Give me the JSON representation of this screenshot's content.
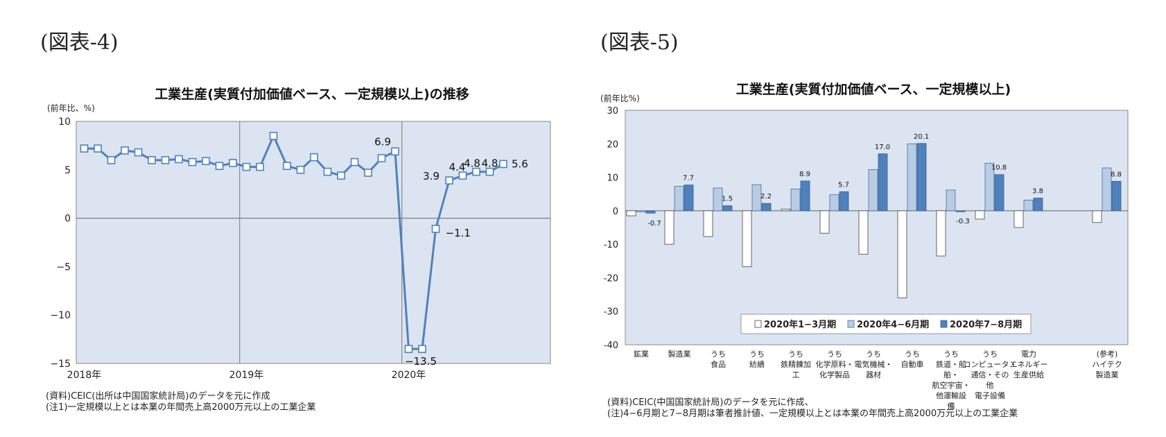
{
  "figures": {
    "fig4_label": "(図表-4)",
    "fig5_label": "(図表-5)"
  },
  "chart_data": [
    {
      "type": "line",
      "title": "工業生産(実質付加価値ベース、一定規模以上)の推移",
      "ylabel": "(前年比、%)",
      "ylim": [
        -15,
        10
      ],
      "yticks": [
        "10",
        "5",
        "0",
        "−5",
        "−10",
        "−15"
      ],
      "x_year_labels": [
        "2018年",
        "2019年",
        "2020年"
      ],
      "x": [
        "2018-01",
        "2018-02",
        "2018-03",
        "2018-04",
        "2018-05",
        "2018-06",
        "2018-07",
        "2018-08",
        "2018-09",
        "2018-10",
        "2018-11",
        "2018-12",
        "2019-01",
        "2019-02",
        "2019-03",
        "2019-04",
        "2019-05",
        "2019-06",
        "2019-07",
        "2019-08",
        "2019-09",
        "2019-10",
        "2019-11",
        "2019-12",
        "2020-01",
        "2020-02",
        "2020-03",
        "2020-04",
        "2020-05",
        "2020-06",
        "2020-07",
        "2020-08"
      ],
      "series": [
        {
          "values": [
            7.2,
            7.2,
            6.0,
            7.0,
            6.8,
            6.0,
            6.0,
            6.1,
            5.8,
            5.9,
            5.4,
            5.7,
            5.3,
            5.3,
            8.5,
            5.4,
            5.0,
            6.3,
            4.8,
            4.4,
            5.8,
            4.7,
            6.2,
            6.9,
            -13.5,
            -13.5,
            -1.1,
            3.9,
            4.4,
            4.8,
            4.8,
            5.6
          ],
          "color": "#4f81bd"
        }
      ],
      "data_labels": [
        "6.9",
        "−13.5",
        "−1.1",
        "3.9",
        "4.4",
        "4.8",
        "4.8",
        "5.6"
      ],
      "grid": false,
      "notes": [
        "(資料)CEIC(出所は中国国家統計局)のデータを元に作成",
        "(注1)一定規模以上とは本業の年間売上高2000万元以上の工業企業"
      ]
    },
    {
      "type": "bar",
      "title": "工業生産(実質付加価値ベース、一定規模以上)",
      "ylabel": "(前年比%)",
      "ylim": [
        -40,
        30
      ],
      "yticks": [
        "30",
        "20",
        "10",
        "0",
        "-10",
        "-20",
        "-30",
        "-40"
      ],
      "categories": [
        "鉱業",
        "製造業",
        "うち 食品",
        "うち 紡績",
        "うち 鉄精錬加工",
        "うち 化学原料・化学製品",
        "うち 電気機械・器材",
        "うち 自動車",
        "うち 鉄道・船舶・航空宇宙・他運輸設備",
        "うち コンピュータ・通信・その他電子設備",
        "電力 エネルギー生産供給",
        "(参考) ハイテク製造業"
      ],
      "category_lines": [
        [
          "鉱業"
        ],
        [
          "製造業"
        ],
        [
          "うち",
          "食品"
        ],
        [
          "うち",
          "紡績"
        ],
        [
          "うち",
          "鉄精錬加",
          "工"
        ],
        [
          "うち",
          "化学原料・",
          "化学製品"
        ],
        [
          "うち",
          "電気機械・",
          "器材"
        ],
        [
          "うち",
          "自動車"
        ],
        [
          "うち",
          "鉄道・船",
          "舶・",
          "航空宇宙・",
          "他運輸設",
          "備"
        ],
        [
          "うち",
          "コンピュータ・",
          "通信・その",
          "他",
          "電子設備"
        ],
        [
          "電力",
          "エネルギー",
          "生産供給"
        ],
        [
          "(参考)",
          "ハイテク",
          "製造業"
        ]
      ],
      "series": [
        {
          "name": "2020年1−3月期",
          "color": "#ffffff",
          "values": [
            -1.5,
            -10.0,
            -7.7,
            -16.7,
            0.5,
            -6.7,
            -13.0,
            -26.0,
            -13.5,
            -2.5,
            -5.0,
            -3.5
          ]
        },
        {
          "name": "2020年4−6月期",
          "color": "#b8cce4",
          "values": [
            -0.3,
            7.3,
            6.8,
            7.8,
            6.5,
            4.8,
            12.3,
            20.0,
            6.2,
            14.2,
            3.2,
            12.8
          ]
        },
        {
          "name": "2020年7−8月期",
          "color": "#4f81bd",
          "values": [
            -0.7,
            7.7,
            1.5,
            2.2,
            8.9,
            5.7,
            17.0,
            20.1,
            -0.3,
            10.8,
            3.8,
            8.8
          ]
        }
      ],
      "data_labels": [
        "-0.7",
        "7.7",
        "1.5",
        "2.2",
        "8.9",
        "5.7",
        "17.0",
        "20.1",
        "-0.3",
        "10.8",
        "3.8",
        "8.8"
      ],
      "legend": "bottom-center",
      "grid": false,
      "notes": [
        "(資料)CEIC(中国国家統計局)のデータを元に作成、",
        "(注)4−6月期と7−8月期は筆者推計値、一定規模以上とは本業の年間売上高2000万元以上の工業企業"
      ]
    }
  ]
}
